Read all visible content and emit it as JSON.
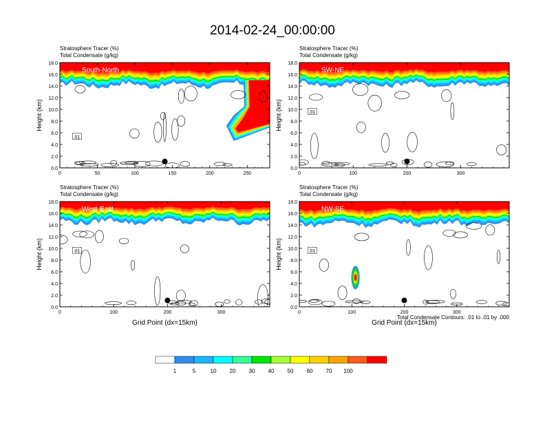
{
  "title": "2014-02-24_00:00:00",
  "colors": {
    "levels": [
      "#ffffff",
      "#2e8ef0",
      "#1ab7ff",
      "#00ffff",
      "#33ff99",
      "#00e600",
      "#a6ff33",
      "#ffff00",
      "#ffd200",
      "#ffa500",
      "#ff5a1e",
      "#ff0000"
    ]
  },
  "colorbar": {
    "labels": [
      "1",
      "5",
      "10",
      "20",
      "30",
      "40",
      "50",
      "60",
      "70",
      "100"
    ]
  },
  "footnote": "Total Condensate Contours: .01 to .01 by .000",
  "chart_data": [
    {
      "type": "heatmap",
      "panel": "south-north",
      "label": "South-North",
      "subtitle1": "Stratosphere Tracer   (%)",
      "subtitle2": "Total Condensate   (g/kg)",
      "xlabel": "",
      "ylabel": "Height (km)",
      "xlim": [
        0,
        280
      ],
      "ylim": [
        0,
        18
      ],
      "xticks": [
        "0",
        "50",
        "100",
        "150",
        "200",
        "250"
      ],
      "yticks": [
        "0.0",
        "2.0",
        "4.0",
        "6.0",
        "8.0",
        "10.0",
        "12.0",
        "14.0",
        "16.0",
        "18.0"
      ],
      "tracer_base_km": 14.2,
      "marker_x": 140,
      "contour_label": ".01",
      "intrusion": true
    },
    {
      "type": "heatmap",
      "panel": "sw-ne",
      "label": "SW-NE",
      "subtitle1": "Stratosphere Tracer   (%)",
      "subtitle2": "Total Condensate   (g/kg)",
      "xlabel": "",
      "ylabel": "Height (km)",
      "xlim": [
        0,
        390
      ],
      "ylim": [
        0,
        18
      ],
      "xticks": [
        "0",
        "100",
        "200",
        "300"
      ],
      "yticks": [
        "0.0",
        "2.0",
        "4.0",
        "6.0",
        "8.0",
        "10.0",
        "12.0",
        "14.0",
        "16.0",
        "18.0"
      ],
      "tracer_base_km": 14.3,
      "marker_x": 200,
      "contour_label": ".01",
      "intrusion": false
    },
    {
      "type": "heatmap",
      "panel": "west-east",
      "label": "West-East",
      "subtitle1": "Stratosphere Tracer   (%)",
      "subtitle2": "Total Condensate   (g/kg)",
      "xlabel": "Grid Point (dx=15km)",
      "ylabel": "Height (km)",
      "xlim": [
        0,
        390
      ],
      "ylim": [
        0,
        18
      ],
      "xticks": [
        "0",
        "100",
        "200",
        "300"
      ],
      "yticks": [
        "0.0",
        "2.0",
        "4.0",
        "6.0",
        "8.0",
        "10.0",
        "12.0",
        "14.0",
        "16.0",
        "18.0"
      ],
      "tracer_base_km": 14.6,
      "marker_x": 200,
      "contour_label": ".01",
      "intrusion": false
    },
    {
      "type": "heatmap",
      "panel": "nw-se",
      "label": "NW-SE",
      "subtitle1": "Stratosphere Tracer   (%)",
      "subtitle2": "Total Condensate   (g/kg)",
      "xlabel": "Grid Point (dx=15km)",
      "ylabel": "Height (km)",
      "xlim": [
        0,
        400
      ],
      "ylim": [
        0,
        18
      ],
      "xticks": [
        "0",
        "100",
        "200",
        "300"
      ],
      "yticks": [
        "0.0",
        "2.0",
        "4.0",
        "6.0",
        "8.0",
        "10.0",
        "12.0",
        "14.0",
        "16.0",
        "18.0"
      ],
      "tracer_base_km": 14.3,
      "marker_x": 200,
      "contour_label": ".01",
      "intrusion": false,
      "blob": {
        "x": 107,
        "y": 5.0
      }
    }
  ]
}
